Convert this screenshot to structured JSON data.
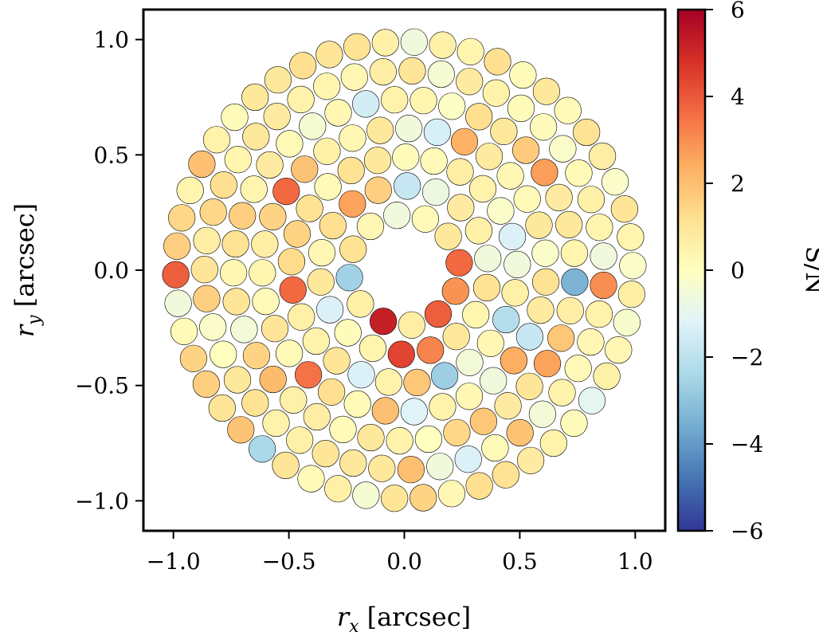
{
  "chart_data": {
    "type": "scatter",
    "description_style": "circular apertures colored by signal-to-noise",
    "xlabel_var": "r",
    "xlabel_sub": "x",
    "xlabel_unit": "[arcsec]",
    "ylabel_var": "r",
    "ylabel_sub": "y",
    "ylabel_unit": "[arcsec]",
    "xlim": [
      -1.13,
      1.13
    ],
    "ylim": [
      -1.13,
      1.13
    ],
    "x_ticks": [
      -1.0,
      -0.5,
      0.0,
      0.5,
      1.0
    ],
    "x_tick_labels": [
      "−1.0",
      "−0.5",
      "0.0",
      "0.5",
      "1.0"
    ],
    "y_ticks": [
      -1.0,
      -0.5,
      0.0,
      0.5,
      1.0
    ],
    "y_tick_labels": [
      "−1.0",
      "−0.5",
      "0.0",
      "0.5",
      "1.0"
    ],
    "colorbar": {
      "label": "S/N",
      "range": [
        -6,
        6
      ],
      "ticks": [
        -6,
        -4,
        -2,
        0,
        2,
        4,
        6
      ],
      "tick_labels": [
        "−6",
        "−4",
        "−2",
        "0",
        "2",
        "4",
        "6"
      ],
      "colormap": "RdYlBu_r"
    },
    "grid": false,
    "rings": [
      {
        "r": 0.24,
        "n": 12,
        "offset": -0.39,
        "sn": [
          2.9,
          3.7,
          0.9,
          0.2,
          -0.6,
          0.3,
          1.1,
          -2.6,
          0.6,
          5.2,
          0.7,
          3.9
        ]
      },
      {
        "r": 0.365,
        "n": 18,
        "offset": 0.14,
        "sn": [
          -0.6,
          0.6,
          0.8,
          -0.7,
          -1.8,
          1.6,
          2.6,
          1.2,
          0.3,
          0.9,
          -1.3,
          0.1,
          0.4,
          4.4,
          3.2,
          0.9,
          0.4,
          1.1
        ]
      },
      {
        "r": 0.49,
        "n": 25,
        "offset": 0.05,
        "sn": [
          -0.6,
          -1.3,
          -0.2,
          0.5,
          0.7,
          0.2,
          0.1,
          0.9,
          1.1,
          0.2,
          1.1,
          1.5,
          1.3,
          3.7,
          0.6,
          0.5,
          1.0,
          -1.3,
          0.5,
          1.8,
          -2.7,
          -0.5,
          0.3,
          -2.2,
          0.6
        ]
      },
      {
        "r": 0.615,
        "n": 31,
        "offset": 0.12,
        "sn": [
          -0.2,
          0.9,
          0.2,
          0.3,
          0.8,
          2.3,
          -1.4,
          -0.6,
          0.9,
          0.3,
          0.6,
          1.9,
          3.7,
          1.5,
          0.7,
          0.4,
          0.2,
          1.0,
          0.2,
          3.5,
          1.2,
          0.2,
          2.0,
          -1.2,
          0.5,
          0.3,
          -0.6,
          2.4,
          -1.8,
          0.8,
          1.1
        ]
      },
      {
        "r": 0.74,
        "n": 37,
        "offset": 0.1,
        "sn": [
          0.4,
          0.9,
          0.8,
          2.7,
          1.7,
          0.9,
          1.2,
          -0.1,
          0.4,
          0.5,
          -1.5,
          0.3,
          -0.4,
          0.2,
          0.8,
          0.4,
          1.6,
          1.1,
          0.3,
          1.0,
          -0.5,
          1.5,
          2.1,
          0.6,
          0.7,
          0.2,
          0.9,
          0.5,
          0.0,
          1.4,
          1.8,
          0.8,
          1.0,
          2.6,
          1.8,
          0.7,
          -3.4
        ]
      },
      {
        "r": 0.865,
        "n": 43,
        "offset": 0.07,
        "sn": [
          -0.6,
          0.4,
          0.6,
          0.2,
          -0.2,
          0.1,
          0.1,
          0.5,
          0.8,
          -0.4,
          1.0,
          0.7,
          0.3,
          0.4,
          0.5,
          0.8,
          0.9,
          0.4,
          1.2,
          1.4,
          0.7,
          1.0,
          1.6,
          -0.2,
          0.0,
          0.9,
          1.1,
          0.5,
          0.6,
          1.0,
          0.9,
          0.9,
          2.0,
          -0.6,
          -1.3,
          0.2,
          1.9,
          -0.5,
          0.5,
          0.2,
          0.3,
          0.5,
          3.0
        ]
      },
      {
        "r": 0.99,
        "n": 50,
        "offset": 0.02,
        "sn": [
          -0.2,
          0.4,
          1.0,
          -0.2,
          0.7,
          1.1,
          0.2,
          0.9,
          0.1,
          1.2,
          0.4,
          0.6,
          -0.6,
          0.6,
          1.1,
          1.0,
          1.2,
          0.9,
          0.9,
          0.1,
          0.5,
          2.0,
          0.4,
          1.4,
          1.6,
          3.9,
          -0.6,
          0.2,
          1.5,
          1.6,
          1.0,
          1.9,
          -2.4,
          1.0,
          0.2,
          0.6,
          -0.4,
          1.0,
          1.5,
          0.3,
          1.2,
          1.1,
          0.8,
          0.5,
          0.1,
          -1.0,
          0.6,
          0.3,
          -0.3,
          0.7
        ]
      }
    ],
    "ring_aperture_radius": 0.058
  },
  "colors": {
    "frame": "#000000",
    "marker_edge": "#000000"
  }
}
